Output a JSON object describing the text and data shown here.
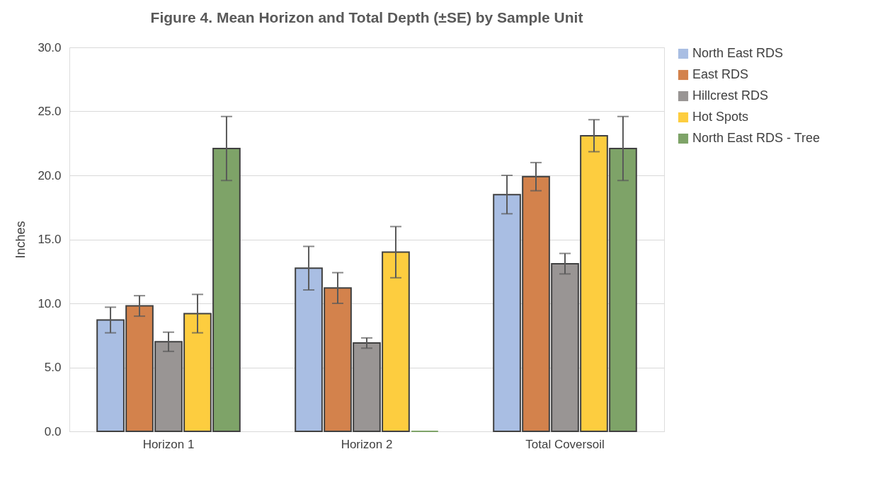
{
  "chart_data": {
    "type": "bar",
    "title": "Figure 4.  Mean Horizon and Total Depth (±SE) by Sample Unit",
    "ylabel": "Inches",
    "categories": [
      "Horizon 1",
      "Horizon 2",
      "Total Coversoil"
    ],
    "series": [
      {
        "name": "North East RDS",
        "color": "#a9bee3",
        "values": [
          8.7,
          12.75,
          18.5
        ],
        "errors": [
          1.0,
          1.7,
          1.5
        ]
      },
      {
        "name": "East RDS",
        "color": "#d3824c",
        "values": [
          9.8,
          11.2,
          19.9
        ],
        "errors": [
          0.8,
          1.2,
          1.1
        ]
      },
      {
        "name": "Hillcrest RDS",
        "color": "#999594",
        "values": [
          7.0,
          6.9,
          13.1
        ],
        "errors": [
          0.75,
          0.4,
          0.8
        ]
      },
      {
        "name": "Hot Spots",
        "color": "#fdcd3f",
        "values": [
          9.2,
          14.0,
          23.1
        ],
        "errors": [
          1.5,
          2.0,
          1.25
        ]
      },
      {
        "name": "North East RDS - Tree",
        "color": "#7ea368",
        "values": [
          22.1,
          0,
          22.1
        ],
        "errors": [
          2.5,
          null,
          2.5
        ]
      }
    ],
    "ylim": [
      0,
      30
    ],
    "yticks": [
      {
        "value": 0,
        "label": "0.0"
      },
      {
        "value": 5,
        "label": "5.0"
      },
      {
        "value": 10,
        "label": "10.0"
      },
      {
        "value": 15,
        "label": "15.0"
      },
      {
        "value": 20,
        "label": "20.0"
      },
      {
        "value": 25,
        "label": "25.0"
      },
      {
        "value": 30,
        "label": "30.0"
      }
    ],
    "grid": "y",
    "legend": "right"
  }
}
